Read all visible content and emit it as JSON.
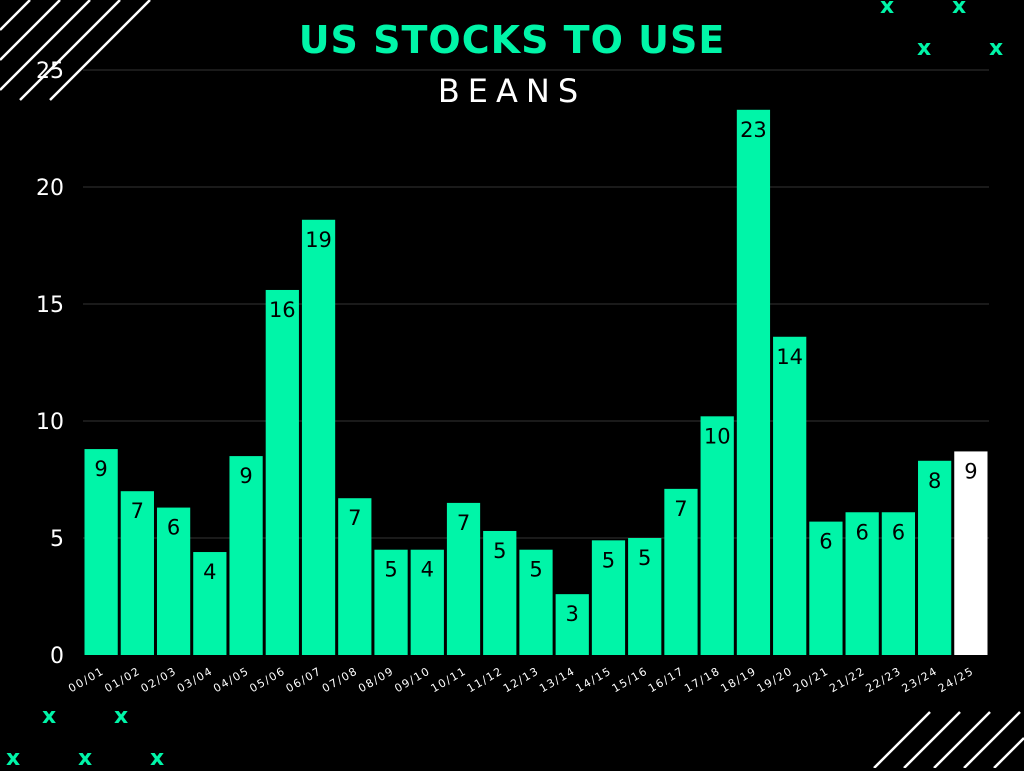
{
  "title": "US STOCKS TO USE",
  "subtitle": "BEANS",
  "deco_mark": "x",
  "colors": {
    "background": "#000000",
    "bar": "#00f5a8",
    "highlight_bar": "#ffffff",
    "title": "#00f5a8",
    "grid": "#333333"
  },
  "chart_data": {
    "type": "bar",
    "title": "US STOCKS TO USE",
    "subtitle": "BEANS",
    "xlabel": "",
    "ylabel": "",
    "ylim": [
      0,
      25
    ],
    "yticks": [
      0,
      5,
      10,
      15,
      20,
      25
    ],
    "grid": true,
    "categories": [
      "00/01",
      "01/02",
      "02/03",
      "03/04",
      "04/05",
      "05/06",
      "06/07",
      "07/08",
      "08/09",
      "09/10",
      "10/11",
      "11/12",
      "12/13",
      "13/14",
      "14/15",
      "15/16",
      "16/17",
      "17/18",
      "18/19",
      "19/20",
      "20/21",
      "21/22",
      "22/23",
      "23/24",
      "24/25"
    ],
    "values": [
      8.8,
      7.0,
      6.3,
      4.4,
      8.5,
      15.6,
      18.6,
      6.7,
      4.5,
      4.5,
      6.5,
      5.3,
      4.5,
      2.6,
      4.9,
      5.0,
      7.1,
      10.2,
      23.3,
      13.6,
      5.7,
      6.1,
      6.1,
      8.3,
      8.7
    ],
    "data_labels": [
      "9",
      "7",
      "6",
      "4",
      "9",
      "16",
      "19",
      "7",
      "5",
      "4",
      "7",
      "5",
      "5",
      "3",
      "5",
      "5",
      "7",
      "10",
      "23",
      "14",
      "6",
      "6",
      "6",
      "8",
      "9"
    ],
    "highlight_index": 24
  }
}
